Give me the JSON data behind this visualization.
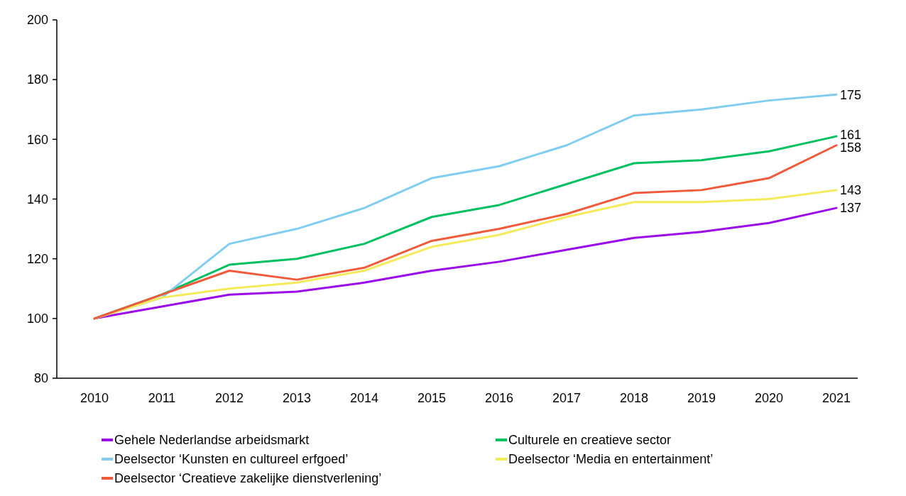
{
  "chart_data": {
    "type": "line",
    "categories": [
      "2010",
      "2011",
      "2012",
      "2013",
      "2014",
      "2015",
      "2016",
      "2017",
      "2018",
      "2019",
      "2020",
      "2021"
    ],
    "ylim": [
      80,
      200
    ],
    "yticks": [
      80,
      100,
      120,
      140,
      160,
      180,
      200
    ],
    "grid": false,
    "legend": "bottom",
    "marker": "none",
    "line_style": "solid",
    "series": [
      {
        "name": "Gehele Nederlandse arbeidsmarkt",
        "color": "#9b0ae8",
        "values": [
          100,
          104,
          108,
          109,
          112,
          116,
          119,
          123,
          127,
          129,
          132,
          137
        ],
        "value_labels": [
          null,
          null,
          null,
          null,
          null,
          null,
          null,
          null,
          null,
          null,
          null,
          "137"
        ]
      },
      {
        "name": "Culturele en creatieve sector",
        "color": "#00c060",
        "values": [
          100,
          108,
          118,
          120,
          125,
          134,
          138,
          145,
          152,
          153,
          156,
          161
        ],
        "value_labels": [
          null,
          null,
          null,
          null,
          null,
          null,
          null,
          null,
          null,
          null,
          null,
          "161"
        ]
      },
      {
        "name": "Deelsector ‘Kunsten en cultureel erfgoed’",
        "color": "#80cdf0",
        "values": [
          100,
          107,
          125,
          130,
          137,
          147,
          151,
          158,
          168,
          170,
          173,
          175
        ],
        "value_labels": [
          null,
          null,
          null,
          null,
          null,
          null,
          null,
          null,
          null,
          null,
          null,
          "175"
        ]
      },
      {
        "name": "Deelsector ‘Media en entertainment’",
        "color": "#f5ea5a",
        "values": [
          100,
          107,
          110,
          112,
          116,
          124,
          128,
          134,
          139,
          139,
          140,
          143
        ],
        "value_labels": [
          null,
          null,
          null,
          null,
          null,
          null,
          null,
          null,
          null,
          null,
          null,
          "143"
        ]
      },
      {
        "name": "Deelsector ‘Creatieve zakelijke dienstverlening’",
        "color": "#f05a3a",
        "values": [
          100,
          108,
          116,
          113,
          117,
          126,
          130,
          135,
          142,
          143,
          147,
          158
        ],
        "value_labels": [
          null,
          null,
          null,
          null,
          null,
          null,
          null,
          null,
          null,
          null,
          null,
          "158"
        ]
      }
    ]
  }
}
